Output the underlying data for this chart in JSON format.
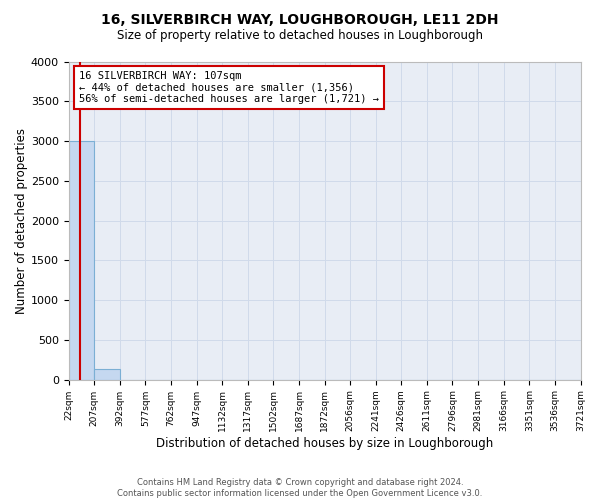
{
  "title": "16, SILVERBIRCH WAY, LOUGHBOROUGH, LE11 2DH",
  "subtitle": "Size of property relative to detached houses in Loughborough",
  "xlabel": "Distribution of detached houses by size in Loughborough",
  "ylabel": "Number of detached properties",
  "bar_edges": [
    22,
    207,
    392,
    577,
    762,
    947,
    1132,
    1317,
    1502,
    1687,
    1872,
    2056,
    2241,
    2426,
    2611,
    2796,
    2981,
    3166,
    3351,
    3536,
    3721
  ],
  "bar_heights": [
    3000,
    130,
    0,
    0,
    0,
    0,
    0,
    0,
    0,
    0,
    0,
    0,
    0,
    0,
    0,
    0,
    0,
    0,
    0,
    0
  ],
  "bar_color": "#c5d8f0",
  "bar_edge_color": "#7bafd4",
  "property_line_x": 107,
  "property_line_color": "#cc0000",
  "annotation_box_color": "#cc0000",
  "annotation_title": "16 SILVERBIRCH WAY: 107sqm",
  "annotation_line1": "← 44% of detached houses are smaller (1,356)",
  "annotation_line2": "56% of semi-detached houses are larger (1,721) →",
  "ylim": [
    0,
    4000
  ],
  "yticks": [
    0,
    500,
    1000,
    1500,
    2000,
    2500,
    3000,
    3500,
    4000
  ],
  "xtick_labels": [
    "22sqm",
    "207sqm",
    "392sqm",
    "577sqm",
    "762sqm",
    "947sqm",
    "1132sqm",
    "1317sqm",
    "1502sqm",
    "1687sqm",
    "1872sqm",
    "2056sqm",
    "2241sqm",
    "2426sqm",
    "2611sqm",
    "2796sqm",
    "2981sqm",
    "3166sqm",
    "3351sqm",
    "3536sqm",
    "3721sqm"
  ],
  "footer_line1": "Contains HM Land Registry data © Crown copyright and database right 2024.",
  "footer_line2": "Contains public sector information licensed under the Open Government Licence v3.0.",
  "background_color": "#ffffff",
  "grid_color": "#d0daea",
  "plot_bg_color": "#e8edf5"
}
